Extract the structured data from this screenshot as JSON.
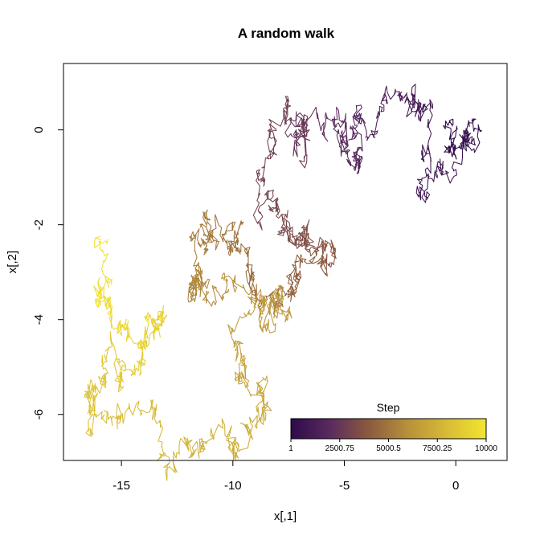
{
  "chart_data": {
    "type": "line",
    "title": "A random walk",
    "xlabel": "x[,1]",
    "ylabel": "x[,2]",
    "xlim": [
      -17.6,
      2.3
    ],
    "ylim": [
      -6.97,
      1.4
    ],
    "x_ticks": [
      -15,
      -10,
      -5,
      0
    ],
    "x_tick_labels": [
      "-15",
      "-10",
      "-5",
      "0"
    ],
    "y_ticks": [
      0,
      -2,
      -4,
      -6
    ],
    "y_tick_labels": [
      "0",
      "-2",
      "-4",
      "-6"
    ],
    "grid": false,
    "n_steps": 10000,
    "color_scale": "viridis-like (dark purple → yellow)",
    "colors": [
      "#2d0a4a",
      "#5a2a5e",
      "#8c5a3e",
      "#b8913a",
      "#d8bb36",
      "#f2e531"
    ],
    "legend": {
      "title": "Step",
      "position": "bottom-right",
      "min": 1,
      "max": 10000,
      "ticks": [
        1,
        2500.75,
        5000.5,
        7500.25,
        10000
      ],
      "tick_labels": [
        "1",
        "2500.75",
        "5000.5",
        "7500.25",
        "10000"
      ]
    },
    "series": [
      {
        "color_by": "step",
        "waypoints": [
          {
            "step": 1,
            "x": -0.2,
            "y": 0.05
          },
          {
            "step": 400,
            "x": 0.8,
            "y": 0.2
          },
          {
            "step": 800,
            "x": -1.6,
            "y": -1.4
          },
          {
            "step": 1200,
            "x": -2.0,
            "y": 0.6
          },
          {
            "step": 1600,
            "x": -4.5,
            "y": 0.1
          },
          {
            "step": 2000,
            "x": -5.2,
            "y": -0.3
          },
          {
            "step": 2400,
            "x": -7.3,
            "y": -0.3
          },
          {
            "step": 2800,
            "x": -7.5,
            "y": 0.7
          },
          {
            "step": 3100,
            "x": -8.0,
            "y": -1.5
          },
          {
            "step": 3500,
            "x": -7.0,
            "y": -2.3
          },
          {
            "step": 3900,
            "x": -5.5,
            "y": -2.5
          },
          {
            "step": 4300,
            "x": -7.3,
            "y": -3.4
          },
          {
            "step": 4700,
            "x": -9.3,
            "y": -2.5
          },
          {
            "step": 5100,
            "x": -11.3,
            "y": -1.8
          },
          {
            "step": 5500,
            "x": -11.7,
            "y": -3.2
          },
          {
            "step": 5900,
            "x": -10.3,
            "y": -3.2
          },
          {
            "step": 6300,
            "x": -7.6,
            "y": -3.8
          },
          {
            "step": 6700,
            "x": -9.8,
            "y": -4.6
          },
          {
            "step": 7100,
            "x": -8.6,
            "y": -5.9
          },
          {
            "step": 7500,
            "x": -10.8,
            "y": -6.4
          },
          {
            "step": 7900,
            "x": -13.3,
            "y": -6.2
          },
          {
            "step": 8300,
            "x": -16.6,
            "y": -5.6
          },
          {
            "step": 8700,
            "x": -15.0,
            "y": -5.1
          },
          {
            "step": 9100,
            "x": -13.1,
            "y": -3.7
          },
          {
            "step": 9500,
            "x": -15.6,
            "y": -3.9
          },
          {
            "step": 10000,
            "x": -15.6,
            "y": -2.3
          }
        ]
      }
    ]
  }
}
